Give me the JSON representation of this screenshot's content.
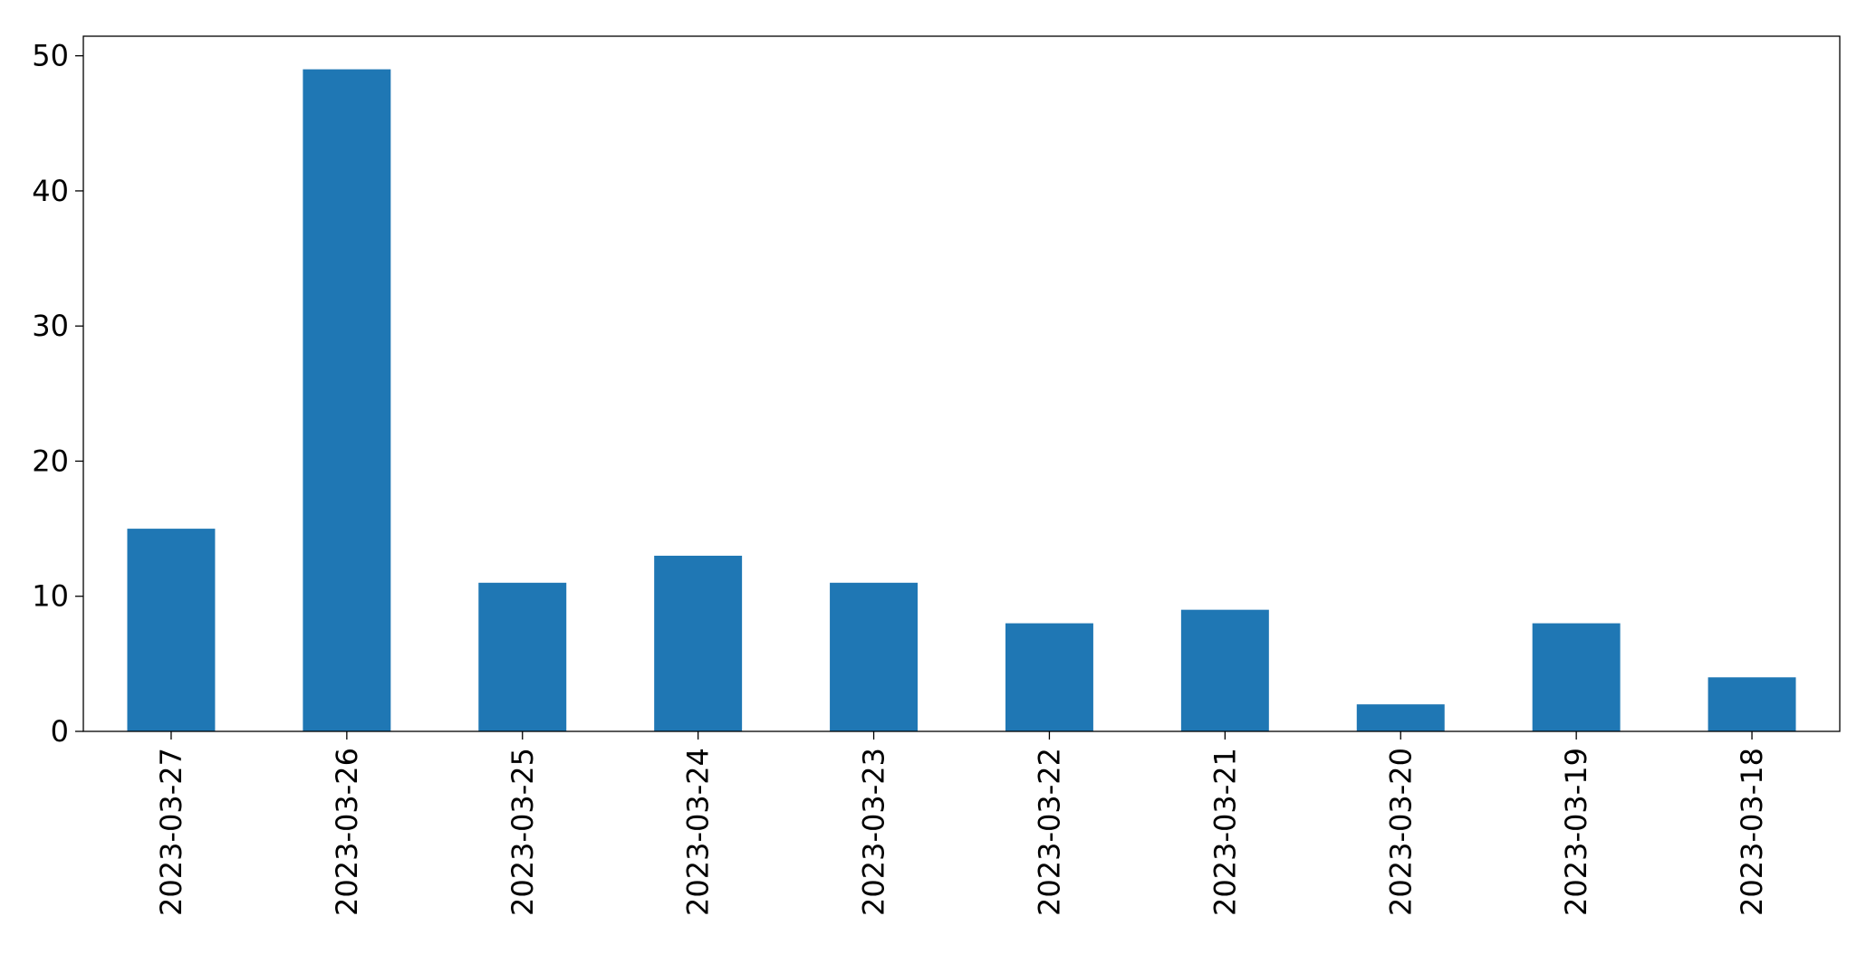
{
  "chart_data": {
    "type": "bar",
    "title": "",
    "xlabel": "",
    "ylabel": "",
    "categories": [
      "2023-03-27",
      "2023-03-26",
      "2023-03-25",
      "2023-03-24",
      "2023-03-23",
      "2023-03-22",
      "2023-03-21",
      "2023-03-20",
      "2023-03-19",
      "2023-03-18"
    ],
    "values": [
      15,
      49,
      11,
      13,
      11,
      8,
      9,
      2,
      8,
      4
    ],
    "ylim": [
      0,
      51.45
    ],
    "yticks": [
      0,
      10,
      20,
      30,
      40,
      50
    ],
    "grid": false,
    "bar_color": "#1f77b4"
  }
}
